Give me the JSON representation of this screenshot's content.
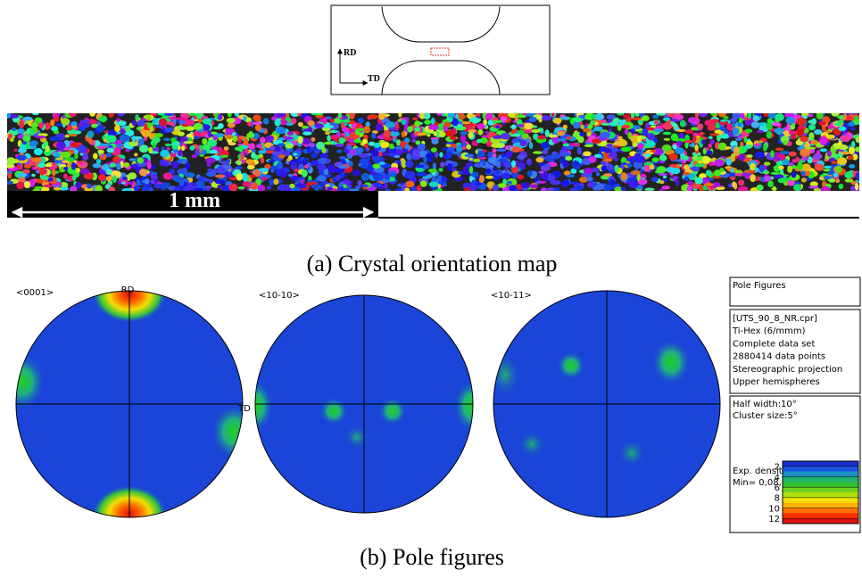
{
  "specimen": {
    "rd": "RD",
    "td": "TD"
  },
  "orientation_map": {
    "scale_bar": "1 mm",
    "caption": "(a) Crystal orientation map"
  },
  "pole_figures": {
    "figures": [
      {
        "label": "<0001>",
        "axis_top": "RD",
        "axis_right": "TD"
      },
      {
        "label": "<10-10>"
      },
      {
        "label": "<10-11>"
      }
    ],
    "caption": "(b) Pole figures"
  },
  "legend": {
    "title": "Pole Figures",
    "info": [
      "[UTS_90_8_NR.cpr]",
      "Ti-Hex (6/mmm)",
      "Complete data set",
      "2880414 data points",
      "Stereographic projection",
      "Upper hemispheres"
    ],
    "settings": [
      "Half width:10°",
      "Cluster size:5°"
    ],
    "densities_title": "Exp. densities (mud):",
    "range": "Min= 0,08, Max=13,50",
    "levels": [
      2,
      4,
      6,
      8,
      10,
      12
    ]
  }
}
